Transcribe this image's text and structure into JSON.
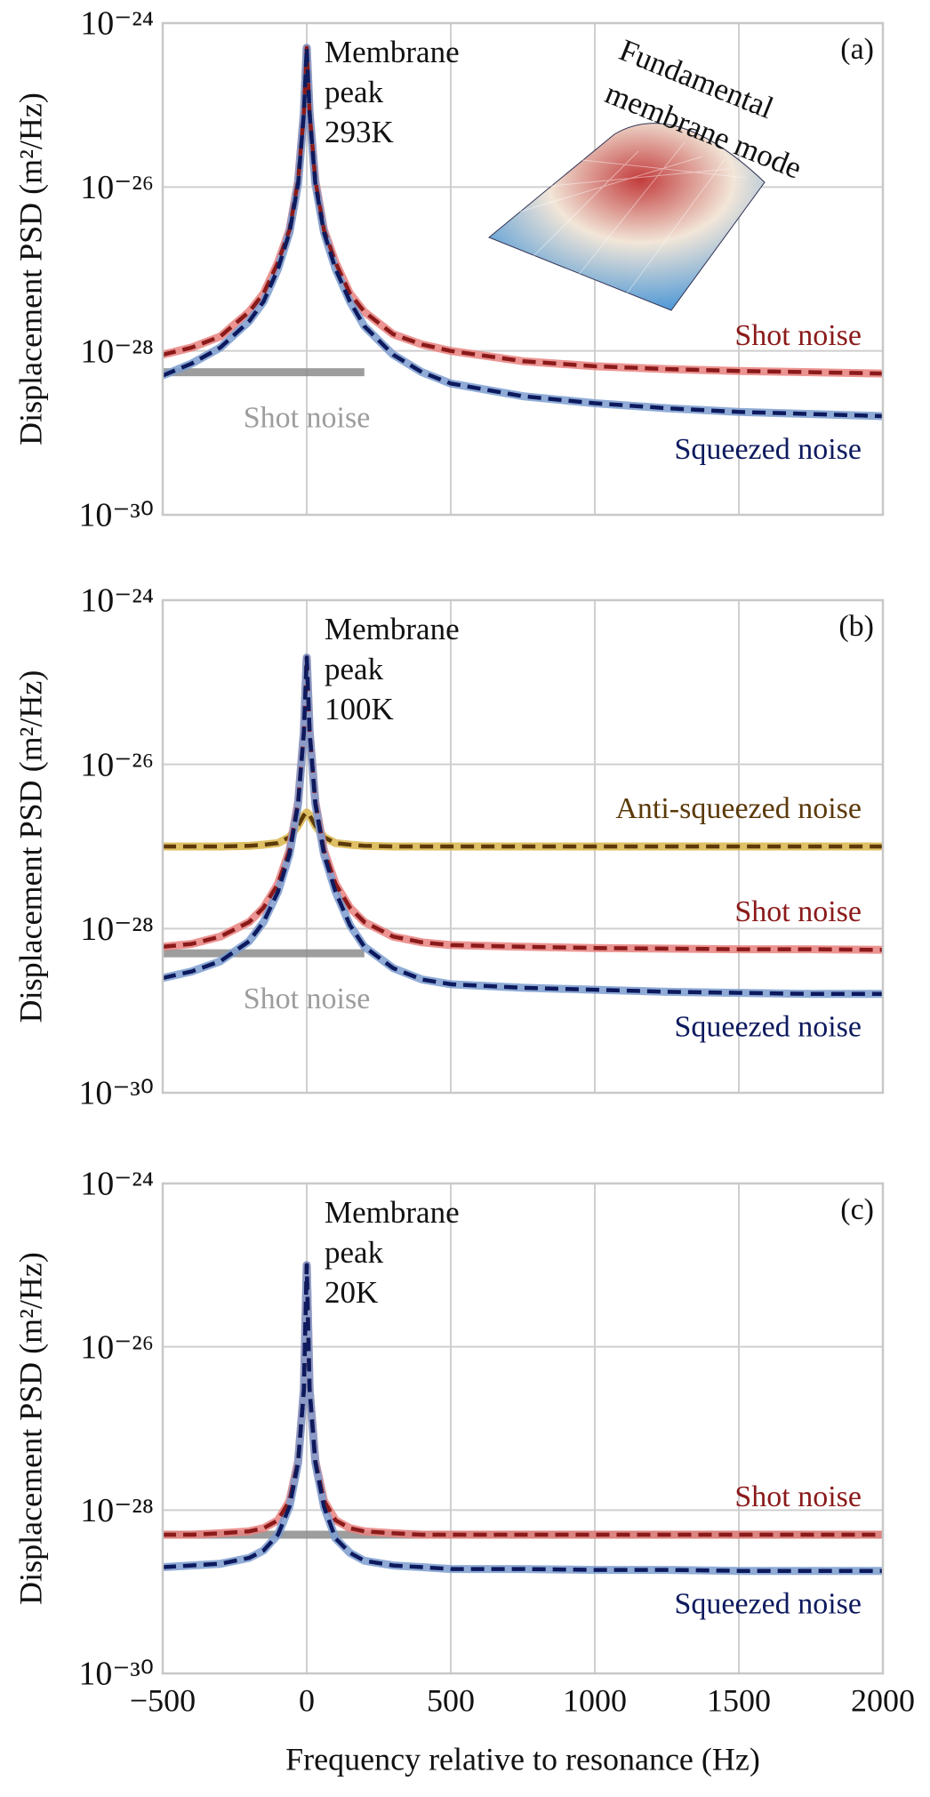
{
  "chart_data": [
    {
      "type": "line",
      "panel_label": "(a)",
      "annotation": [
        "Membrane",
        "peak",
        "293K"
      ],
      "inset_label": [
        "Fundamental",
        "membrane mode"
      ],
      "ylabel": "Displacement PSD (m²/Hz)",
      "log_y": true,
      "grid": true,
      "show_xticklabels": false,
      "x": [
        -500,
        -400,
        -300,
        -200,
        -150,
        -100,
        -60,
        -30,
        -10,
        0,
        10,
        30,
        60,
        100,
        150,
        200,
        300,
        400,
        500,
        750,
        1000,
        1250,
        1500,
        1750,
        2000
      ],
      "xlim": [
        -500,
        2000
      ],
      "xticks": [
        {
          "value": -500,
          "label": "−500"
        },
        0,
        500,
        1000,
        1500,
        2000
      ],
      "ylim": [
        1e-30,
        1e-24
      ],
      "yticks": [
        {
          "value": 1e-30,
          "label": "10⁻³⁰"
        },
        {
          "value": 1e-28,
          "label": "10⁻²⁸"
        },
        {
          "value": 1e-26,
          "label": "10⁻²⁶"
        },
        {
          "value": 1e-24,
          "label": "10⁻²⁴"
        }
      ],
      "series": [
        {
          "name": "Shot noise",
          "color": "#8c8c8c",
          "style": "solid",
          "values": [
            5.5e-29,
            5.5e-29,
            5.5e-29,
            5.5e-29,
            5.5e-29,
            5.5e-29,
            5.5e-29,
            5.5e-29,
            5.5e-29,
            5.5e-29,
            5.5e-29,
            5.5e-29,
            5.5e-29,
            5.5e-29,
            5.5e-29,
            5.5e-29,
            null,
            null,
            null,
            null,
            null,
            null,
            null,
            null,
            null
          ]
        },
        {
          "color": "#e8817f",
          "style": "solid",
          "values": [
            9e-29,
            1.1e-28,
            1.5e-28,
            3e-28,
            5e-28,
            1.2e-27,
            3e-27,
            1.2e-26,
            8e-26,
            5e-25,
            8e-26,
            1.2e-26,
            3e-27,
            1.2e-27,
            5e-28,
            3e-28,
            1.6e-28,
            1.2e-28,
            1e-28,
            7.5e-29,
            6.5e-29,
            6e-29,
            5.7e-29,
            5.5e-29,
            5.3e-29
          ]
        },
        {
          "color": "#7b9ccf",
          "style": "solid",
          "values": [
            5e-29,
            7e-29,
            1.1e-28,
            2.3e-28,
            4e-28,
            1e-27,
            2.8e-27,
            1.1e-26,
            8e-26,
            5e-25,
            8e-26,
            1.1e-26,
            2.8e-27,
            1e-27,
            4e-28,
            2e-28,
            9e-29,
            5.5e-29,
            4e-29,
            2.8e-29,
            2.3e-29,
            2e-29,
            1.8e-29,
            1.7e-29,
            1.6e-29
          ]
        },
        {
          "name": "Shot noise",
          "color": "#8b1a1a",
          "style": "dashed",
          "values": [
            9e-29,
            1.1e-28,
            1.5e-28,
            3e-28,
            5e-28,
            1.2e-27,
            3e-27,
            1.2e-26,
            8e-26,
            5e-25,
            8e-26,
            1.2e-26,
            3e-27,
            1.2e-27,
            5e-28,
            3e-28,
            1.6e-28,
            1.2e-28,
            1e-28,
            7.5e-29,
            6.5e-29,
            6e-29,
            5.7e-29,
            5.5e-29,
            5.3e-29
          ]
        },
        {
          "name": "Squeezed noise",
          "color": "#0d1a5e",
          "style": "dashed",
          "values": [
            5e-29,
            7e-29,
            1.1e-28,
            2.3e-28,
            4e-28,
            1e-27,
            2.8e-27,
            1.1e-26,
            8e-26,
            5e-25,
            8e-26,
            1.1e-26,
            2.8e-27,
            1e-27,
            4e-28,
            2e-28,
            9e-29,
            5.5e-29,
            4e-29,
            2.8e-29,
            2.3e-29,
            2e-29,
            1.8e-29,
            1.7e-29,
            1.6e-29
          ]
        }
      ]
    },
    {
      "type": "line",
      "panel_label": "(b)",
      "annotation": [
        "Membrane",
        "peak",
        "100K"
      ],
      "ylabel": "Displacement PSD (m²/Hz)",
      "log_y": true,
      "grid": true,
      "show_xticklabels": false,
      "x": [
        -500,
        -400,
        -300,
        -200,
        -150,
        -100,
        -60,
        -30,
        -10,
        0,
        10,
        30,
        60,
        100,
        150,
        200,
        300,
        400,
        500,
        750,
        1000,
        1250,
        1500,
        1750,
        2000
      ],
      "xlim": [
        -500,
        2000
      ],
      "xticks": [
        {
          "value": -500,
          "label": "−500"
        },
        0,
        500,
        1000,
        1500,
        2000
      ],
      "ylim": [
        1e-30,
        1e-24
      ],
      "yticks": [
        {
          "value": 1e-30,
          "label": "10⁻³⁰"
        },
        {
          "value": 1e-28,
          "label": "10⁻²⁸"
        },
        {
          "value": 1e-26,
          "label": "10⁻²⁶"
        },
        {
          "value": 1e-24,
          "label": "10⁻²⁴"
        }
      ],
      "series": [
        {
          "color": "#d9b54a",
          "style": "solid",
          "values": [
            1e-27,
            1e-27,
            1e-27,
            1.02e-27,
            1.05e-27,
            1.1e-27,
            1.3e-27,
            1.8e-27,
            2.4e-27,
            2.6e-27,
            2.4e-27,
            1.8e-27,
            1.3e-27,
            1.1e-27,
            1.05e-27,
            1.02e-27,
            1e-27,
            1e-27,
            1e-27,
            1e-27,
            1e-27,
            1e-27,
            1e-27,
            1e-27,
            1e-27
          ]
        },
        {
          "name": "Anti-squeezed noise",
          "color": "#5c3a0a",
          "style": "dashed",
          "values": [
            1e-27,
            1e-27,
            1e-27,
            1.02e-27,
            1.05e-27,
            1.1e-27,
            1.3e-27,
            1.8e-27,
            2.4e-27,
            2.6e-27,
            2.4e-27,
            1.8e-27,
            1.3e-27,
            1.1e-27,
            1.05e-27,
            1.02e-27,
            1e-27,
            1e-27,
            1e-27,
            1e-27,
            1e-27,
            1e-27,
            1e-27,
            1e-27,
            1e-27
          ]
        },
        {
          "name": "Shot noise",
          "color": "#8c8c8c",
          "style": "solid",
          "values": [
            5e-29,
            5e-29,
            5e-29,
            5e-29,
            5e-29,
            5e-29,
            5e-29,
            5e-29,
            5e-29,
            5e-29,
            5e-29,
            5e-29,
            5e-29,
            5e-29,
            5e-29,
            5e-29,
            null,
            null,
            null,
            null,
            null,
            null,
            null,
            null,
            null
          ]
        },
        {
          "color": "#e8817f",
          "style": "solid",
          "values": [
            6e-29,
            6.5e-29,
            8e-29,
            1.2e-28,
            1.8e-28,
            3.5e-28,
            9e-28,
            3.5e-27,
            2.5e-26,
            2e-25,
            2.5e-26,
            3.5e-27,
            9e-28,
            3.5e-28,
            1.8e-28,
            1.2e-28,
            8e-29,
            6.8e-29,
            6.3e-29,
            6e-29,
            5.8e-29,
            5.7e-29,
            5.6e-29,
            5.6e-29,
            5.5e-29
          ]
        },
        {
          "color": "#7b9ccf",
          "style": "solid",
          "values": [
            2.5e-29,
            3e-29,
            4e-29,
            7e-29,
            1.2e-28,
            2.8e-28,
            8e-28,
            3.3e-27,
            2.5e-26,
            2e-25,
            2.5e-26,
            3.3e-27,
            8e-28,
            2.8e-28,
            1.1e-28,
            6e-29,
            3.3e-29,
            2.4e-29,
            2.1e-29,
            1.9e-29,
            1.8e-29,
            1.7e-29,
            1.65e-29,
            1.6e-29,
            1.6e-29
          ]
        },
        {
          "name": "Shot noise",
          "color": "#8b1a1a",
          "style": "dashed",
          "values": [
            6e-29,
            6.5e-29,
            8e-29,
            1.2e-28,
            1.8e-28,
            3.5e-28,
            9e-28,
            3.5e-27,
            2.5e-26,
            2e-25,
            2.5e-26,
            3.5e-27,
            9e-28,
            3.5e-28,
            1.8e-28,
            1.2e-28,
            8e-29,
            6.8e-29,
            6.3e-29,
            6e-29,
            5.8e-29,
            5.7e-29,
            5.6e-29,
            5.6e-29,
            5.5e-29
          ]
        },
        {
          "name": "Squeezed noise",
          "color": "#0d1a5e",
          "style": "dashed",
          "values": [
            2.5e-29,
            3e-29,
            4e-29,
            7e-29,
            1.2e-28,
            2.8e-28,
            8e-28,
            3.3e-27,
            2.5e-26,
            2e-25,
            2.5e-26,
            3.3e-27,
            8e-28,
            2.8e-28,
            1.1e-28,
            6e-29,
            3.3e-29,
            2.4e-29,
            2.1e-29,
            1.9e-29,
            1.8e-29,
            1.7e-29,
            1.65e-29,
            1.6e-29,
            1.6e-29
          ]
        }
      ]
    },
    {
      "type": "line",
      "panel_label": "(c)",
      "annotation": [
        "Membrane",
        "peak",
        "20K"
      ],
      "ylabel": "Displacement PSD (m²/Hz)",
      "xlabel": "Frequency relative to resonance (Hz)",
      "log_y": true,
      "grid": true,
      "show_xticklabels": true,
      "x": [
        -500,
        -400,
        -300,
        -200,
        -150,
        -100,
        -60,
        -30,
        -10,
        0,
        10,
        30,
        60,
        100,
        150,
        200,
        300,
        400,
        500,
        750,
        1000,
        1250,
        1500,
        1750,
        2000
      ],
      "xlim": [
        -500,
        2000
      ],
      "xticks": [
        {
          "value": -500,
          "label": "−500"
        },
        0,
        500,
        1000,
        1500,
        2000
      ],
      "ylim": [
        1e-30,
        1e-24
      ],
      "yticks": [
        {
          "value": 1e-30,
          "label": "10⁻³⁰"
        },
        {
          "value": 1e-28,
          "label": "10⁻²⁸"
        },
        {
          "value": 1e-26,
          "label": "10⁻²⁶"
        },
        {
          "value": 1e-24,
          "label": "10⁻²⁴"
        }
      ],
      "series": [
        {
          "color": "#8c8c8c",
          "style": "solid",
          "values": [
            5e-29,
            5e-29,
            5e-29,
            5e-29,
            5e-29,
            5e-29,
            5e-29,
            5e-29,
            5e-29,
            5e-29,
            5e-29,
            5e-29,
            5e-29,
            5e-29,
            5e-29,
            5e-29,
            5e-29,
            5e-29,
            5e-29,
            5e-29,
            5e-29,
            5e-29,
            5e-29,
            5e-29,
            5e-29
          ]
        },
        {
          "color": "#e8817f",
          "style": "solid",
          "values": [
            5e-29,
            5e-29,
            5.2e-29,
            5.5e-29,
            6e-29,
            7.5e-29,
            1.3e-28,
            4e-28,
            3e-27,
            1e-25,
            3e-27,
            4e-28,
            1.3e-28,
            7.5e-29,
            6e-29,
            5.5e-29,
            5.2e-29,
            5e-29,
            5e-29,
            5e-29,
            5e-29,
            5e-29,
            5e-29,
            5e-29,
            5e-29
          ]
        },
        {
          "color": "#7b9ccf",
          "style": "solid",
          "values": [
            2e-29,
            2.1e-29,
            2.2e-29,
            2.6e-29,
            3.2e-29,
            5e-29,
            1.1e-28,
            3.8e-28,
            3e-27,
            1e-25,
            3e-27,
            3.8e-28,
            1.1e-28,
            4.5e-29,
            3e-29,
            2.4e-29,
            2.1e-29,
            2e-29,
            1.9e-29,
            1.9e-29,
            1.85e-29,
            1.85e-29,
            1.8e-29,
            1.8e-29,
            1.8e-29
          ]
        },
        {
          "name": "Shot noise",
          "color": "#8b1a1a",
          "style": "dashed",
          "values": [
            5e-29,
            5e-29,
            5.2e-29,
            5.5e-29,
            6e-29,
            7.5e-29,
            1.3e-28,
            4e-28,
            3e-27,
            1e-25,
            3e-27,
            4e-28,
            1.3e-28,
            7.5e-29,
            6e-29,
            5.5e-29,
            5.2e-29,
            5e-29,
            5e-29,
            5e-29,
            5e-29,
            5e-29,
            5e-29,
            5e-29,
            5e-29
          ]
        },
        {
          "name": "Squeezed noise",
          "color": "#0d1a5e",
          "style": "dashed",
          "values": [
            2e-29,
            2.1e-29,
            2.2e-29,
            2.6e-29,
            3.2e-29,
            5e-29,
            1.1e-28,
            3.8e-28,
            3e-27,
            1e-25,
            3e-27,
            3.8e-28,
            1.1e-28,
            4.5e-29,
            3e-29,
            2.4e-29,
            2.1e-29,
            2e-29,
            1.9e-29,
            1.9e-29,
            1.85e-29,
            1.85e-29,
            1.8e-29,
            1.8e-29,
            1.8e-29
          ]
        }
      ]
    }
  ]
}
